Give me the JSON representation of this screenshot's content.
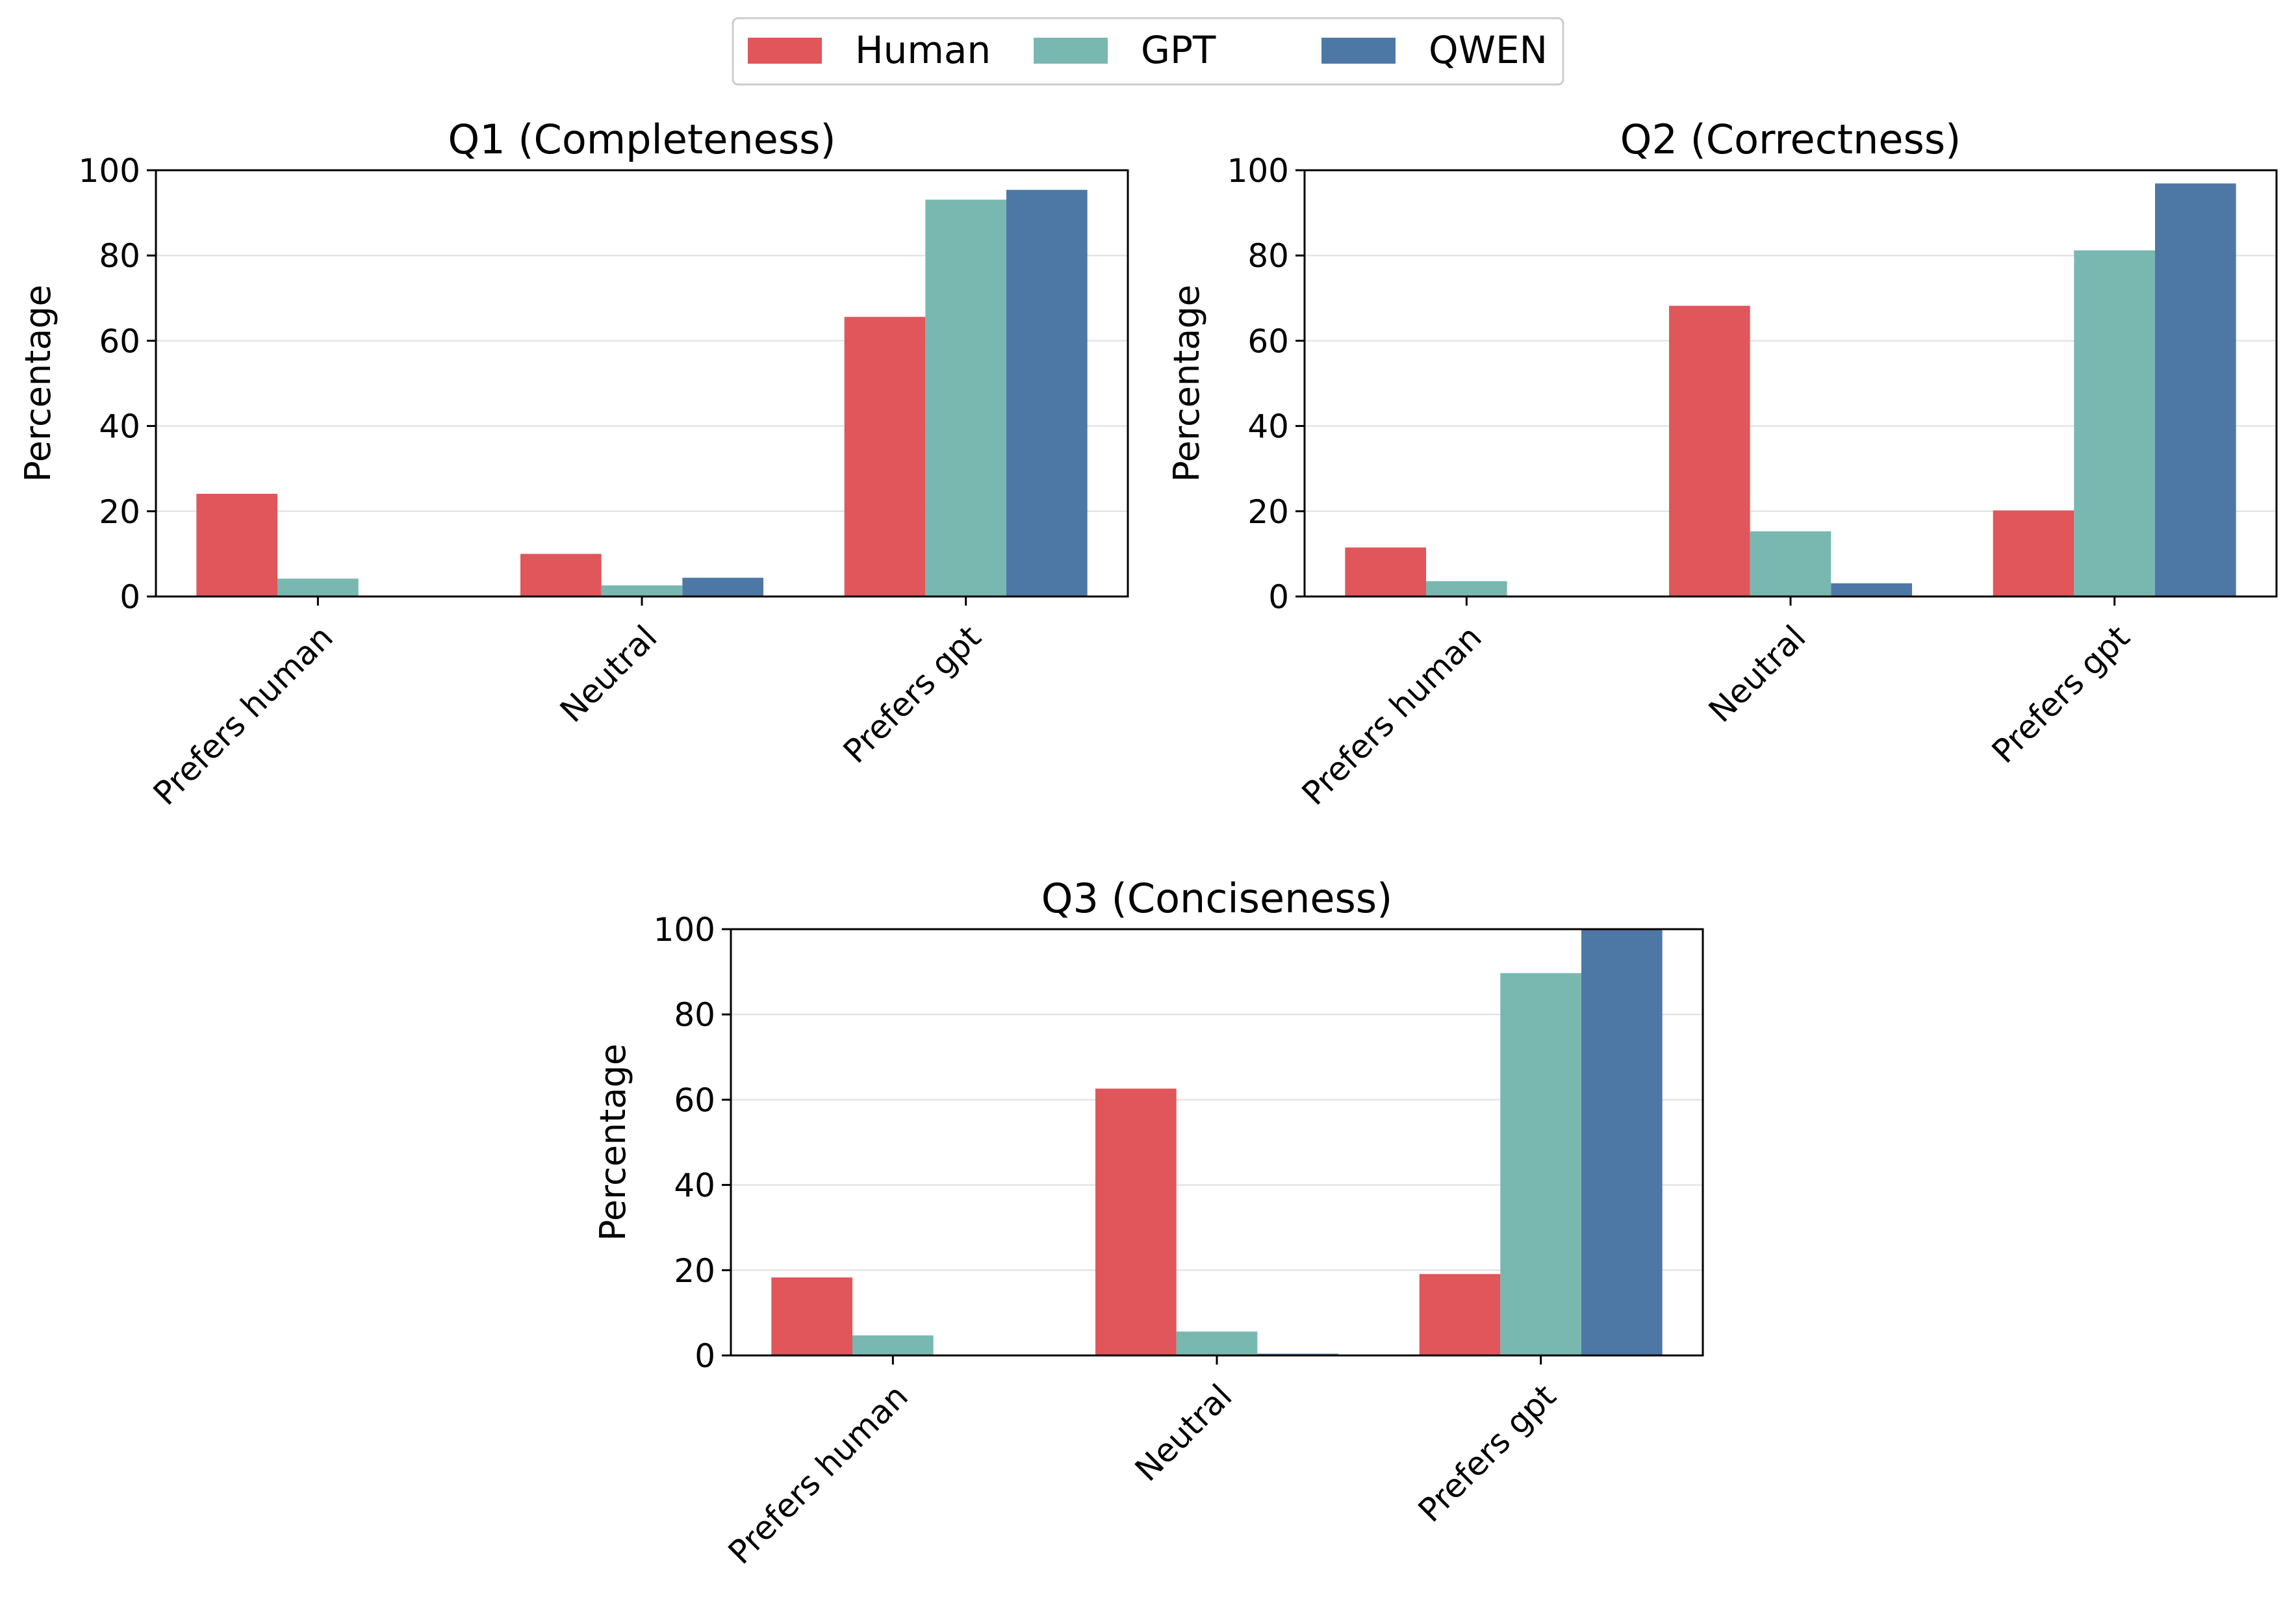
{
  "colors": {
    "Human": "#e0565b",
    "GPT": "#78b8b1",
    "QWEN": "#4d78a6"
  },
  "legend": {
    "placement": "top-center",
    "entries": [
      "Human",
      "GPT",
      "QWEN"
    ]
  },
  "chart_data": [
    {
      "type": "bar",
      "title": "Q1 (Completeness)",
      "xlabel": "",
      "ylabel": "Percentage",
      "ylim": [
        0,
        100
      ],
      "yticks": [
        0,
        20,
        40,
        60,
        80,
        100
      ],
      "grid": "y",
      "categories": [
        "Prefers human",
        "Neutral",
        "Prefers gpt"
      ],
      "series": [
        {
          "name": "Human",
          "values": [
            24.1,
            10.0,
            65.6
          ]
        },
        {
          "name": "GPT",
          "values": [
            4.2,
            2.6,
            93.1
          ]
        },
        {
          "name": "QWEN",
          "values": [
            0.0,
            4.4,
            95.4
          ]
        }
      ]
    },
    {
      "type": "bar",
      "title": "Q2 (Correctness)",
      "xlabel": "",
      "ylabel": "Percentage",
      "ylim": [
        0,
        100
      ],
      "yticks": [
        0,
        20,
        40,
        60,
        80,
        100
      ],
      "grid": "y",
      "categories": [
        "Prefers human",
        "Neutral",
        "Prefers gpt"
      ],
      "series": [
        {
          "name": "Human",
          "values": [
            11.5,
            68.2,
            20.2
          ]
        },
        {
          "name": "GPT",
          "values": [
            3.6,
            15.3,
            81.2
          ]
        },
        {
          "name": "QWEN",
          "values": [
            0.0,
            3.1,
            96.9
          ]
        }
      ]
    },
    {
      "type": "bar",
      "title": "Q3 (Conciseness)",
      "xlabel": "",
      "ylabel": "Percentage",
      "ylim": [
        0,
        100
      ],
      "yticks": [
        0,
        20,
        40,
        60,
        80,
        100
      ],
      "grid": "y",
      "categories": [
        "Prefers human",
        "Neutral",
        "Prefers gpt"
      ],
      "series": [
        {
          "name": "Human",
          "values": [
            18.3,
            62.6,
            19.1
          ]
        },
        {
          "name": "GPT",
          "values": [
            4.7,
            5.6,
            89.7
          ]
        },
        {
          "name": "QWEN",
          "values": [
            0.0,
            0.4,
            99.8
          ]
        }
      ]
    }
  ]
}
